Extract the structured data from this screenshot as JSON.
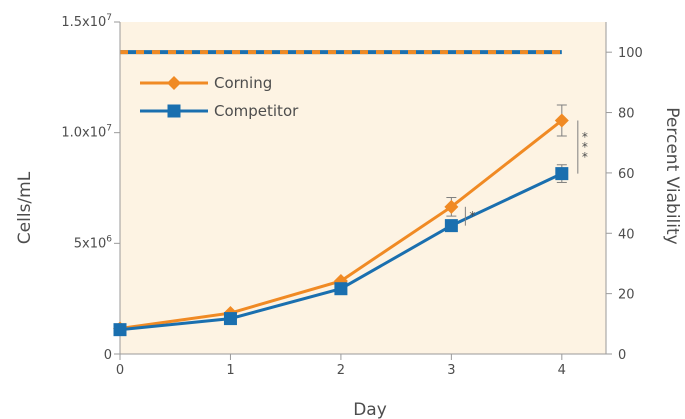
{
  "chart_data": {
    "type": "line",
    "x": [
      0,
      1,
      2,
      3,
      4
    ],
    "xlabel": "Day",
    "ylabel": "Cells/mL",
    "y2label": "Percent Viability",
    "xlim": [
      0,
      4.4
    ],
    "ylim": [
      0,
      15000000
    ],
    "y2lim": [
      0,
      110
    ],
    "x_ticks": [
      "0",
      "1",
      "2",
      "3",
      "4"
    ],
    "y_ticks": [
      {
        "value": 0,
        "base": "0",
        "exp": ""
      },
      {
        "value": 5000000,
        "base": "5x10",
        "exp": "6"
      },
      {
        "value": 10000000,
        "base": "1.0x10",
        "exp": "7"
      },
      {
        "value": 15000000,
        "base": "1.5x10",
        "exp": "7"
      }
    ],
    "y2_ticks": [
      "0",
      "20",
      "40",
      "60",
      "80",
      "100"
    ],
    "y2_tick_values": [
      0,
      20,
      40,
      60,
      80,
      100
    ],
    "background": "#fdf3e3",
    "grid": false,
    "legend_position": "top-left",
    "series": [
      {
        "name": "Corning",
        "color": "#f08a24",
        "marker": "diamond",
        "axis": "left",
        "values": [
          1150000,
          1850000,
          3300000,
          6650000,
          10550000
        ],
        "errors": [
          0,
          0,
          0,
          420000,
          700000
        ]
      },
      {
        "name": "Competitor",
        "color": "#1a6faf",
        "marker": "square",
        "axis": "left",
        "values": [
          1100000,
          1600000,
          2950000,
          5800000,
          8150000
        ],
        "errors": [
          0,
          0,
          0,
          0,
          400000
        ]
      }
    ],
    "viability": [
      {
        "series": "Corning",
        "color": "#f08a24",
        "x": [
          0,
          4
        ],
        "values": [
          100,
          100
        ]
      },
      {
        "series": "Competitor",
        "color": "#1a6faf",
        "x": [
          0,
          4
        ],
        "values": [
          100,
          100
        ]
      }
    ],
    "significance": [
      {
        "x": 3,
        "y_low": 5800000,
        "y_high": 6650000,
        "label": "*"
      },
      {
        "x": 4,
        "y_low": 8150000,
        "y_high": 10550000,
        "label": "***"
      }
    ]
  }
}
